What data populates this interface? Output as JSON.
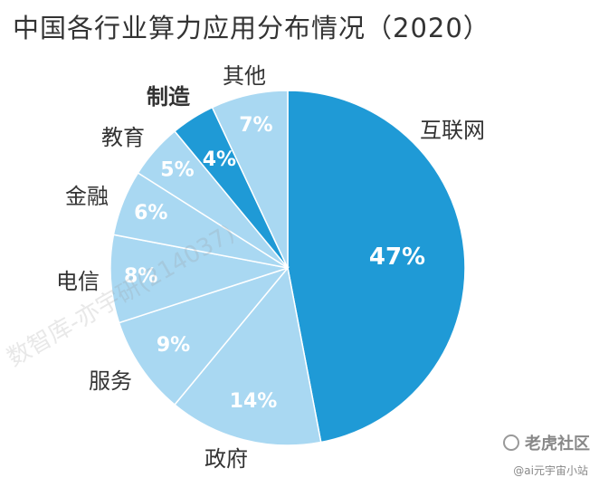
{
  "title": "中国各行业算力应用分布情况（2020）",
  "watermark": "数智库-亦宇研(214037)",
  "logo_text": "老虎社区",
  "handle_text": "@ai元宇宙小站",
  "colors": {
    "dark_slice": "#1f9ad6",
    "light_slice": "#a9d8f2",
    "slice_border": "#ffffff",
    "label_text": "#333333",
    "value_text_light": "#ffffff"
  },
  "chart_data": {
    "type": "pie",
    "title": "中国各行业算力应用分布情况（2020）",
    "unit": "%",
    "start_angle_deg": 0,
    "direction": "clockwise",
    "slices": [
      {
        "label": "互联网",
        "value": 47,
        "display": "47%",
        "style": "dark"
      },
      {
        "label": "政府",
        "value": 14,
        "display": "14%",
        "style": "light"
      },
      {
        "label": "服务",
        "value": 9,
        "display": "9%",
        "style": "light"
      },
      {
        "label": "电信",
        "value": 8,
        "display": "8%",
        "style": "light"
      },
      {
        "label": "金融",
        "value": 6,
        "display": "6%",
        "style": "light"
      },
      {
        "label": "教育",
        "value": 5,
        "display": "5%",
        "style": "light"
      },
      {
        "label": "制造",
        "value": 4,
        "display": "4%",
        "style": "dark"
      },
      {
        "label": "其他",
        "value": 7,
        "display": "7%",
        "style": "light"
      }
    ]
  }
}
